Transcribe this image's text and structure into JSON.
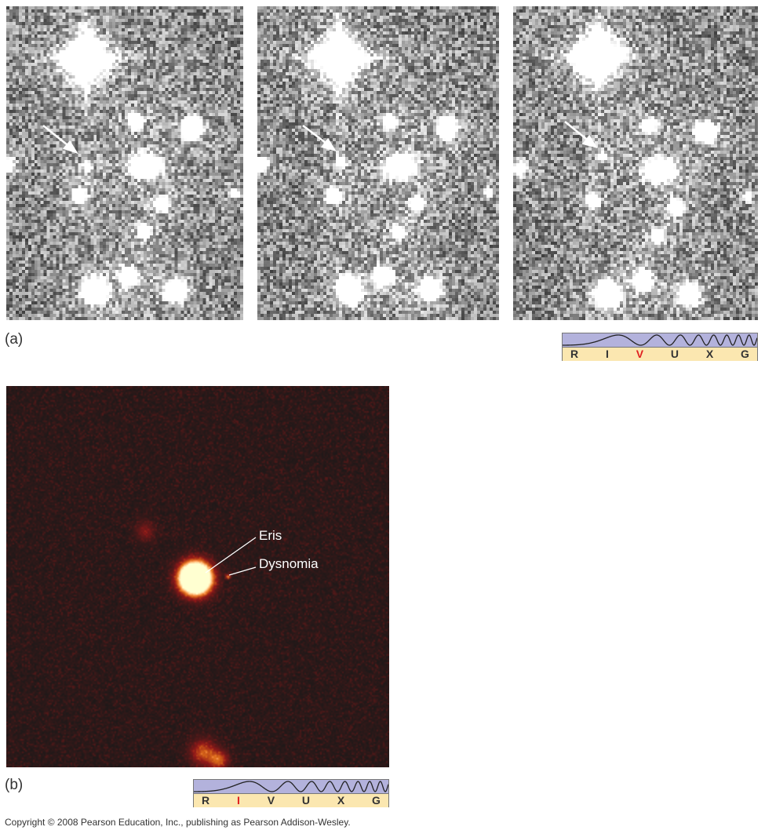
{
  "panel_a": {
    "label": "(a)",
    "frames": 3,
    "spectrum": {
      "bands": [
        "R",
        "I",
        "V",
        "U",
        "X",
        "G"
      ],
      "highlighted": "V"
    }
  },
  "panel_b": {
    "label": "(b)",
    "annotations": {
      "primary": "Eris",
      "moon": "Dysnomia"
    },
    "spectrum": {
      "bands": [
        "R",
        "I",
        "V",
        "U",
        "X",
        "G"
      ],
      "highlighted": "I"
    }
  },
  "colors": {
    "highlight": "#e02020",
    "wave_bg": "#b3b2dc",
    "band_bg": "#fbe7b0"
  },
  "copyright": "Copyright © 2008 Pearson Education, Inc., publishing as Pearson Addison-Wesley."
}
